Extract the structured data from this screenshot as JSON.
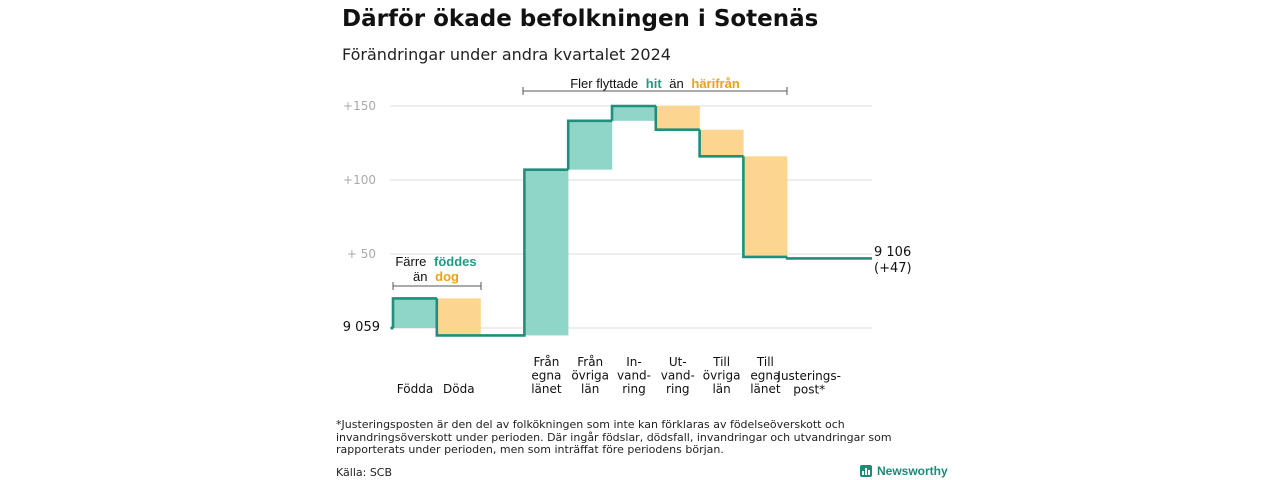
{
  "title": "Därför ökade befolkningen i Sotenäs",
  "subtitle": "Förändringar under andra kvartalet 2024",
  "annotation_top": {
    "prefix": "Fler flyttade",
    "hit": "hit",
    "middle": "än",
    "harifran": "härifrån"
  },
  "annotation_left": {
    "line1_prefix": "Färre",
    "line1_highlight": "föddes",
    "line2_prefix": "än",
    "line2_highlight": "dog"
  },
  "colors": {
    "inflow": "#8fd6c9",
    "outflow": "#fcd691",
    "line": "#1f8f7b",
    "grid": "#dddddd",
    "axis_text": "#aaaaaa",
    "inflow_text": "#1f9a85",
    "outflow_text": "#e9a21a"
  },
  "footnote": "*Justeringsposten är den del av folkökningen som inte kan förklaras av födelseöverskott och invandringsöverskott under perioden. Där ingår födslar, dödsfall, invandringar och utvandringar som rapporterats under perioden, men som inträffat före periodens början.",
  "source": "Källa: SCB",
  "brand": "Newsworthy",
  "chart_data": {
    "type": "waterfall",
    "start_label": "9 059",
    "end_label_line1": "9 106",
    "end_label_line2": "(+47)",
    "y_ticks": [
      {
        "value": 150,
        "label": "+150"
      },
      {
        "value": 100,
        "label": "+100"
      },
      {
        "value": 50,
        "label": "+  50"
      }
    ],
    "ylim": [
      0,
      150
    ],
    "grid": true,
    "steps": [
      {
        "label_lines": [
          "Födda"
        ],
        "from": 0,
        "to": 20,
        "kind": "in"
      },
      {
        "label_lines": [
          "Döda"
        ],
        "from": 20,
        "to": -5,
        "kind": "out"
      },
      {
        "label_lines": [
          "Från",
          "egna",
          "länet"
        ],
        "from": -5,
        "to": 107,
        "kind": "in"
      },
      {
        "label_lines": [
          "Från",
          "övriga",
          "län"
        ],
        "from": 107,
        "to": 140,
        "kind": "in"
      },
      {
        "label_lines": [
          "In-",
          "vand-",
          "ring"
        ],
        "from": 140,
        "to": 150,
        "kind": "in"
      },
      {
        "label_lines": [
          "Ut-",
          "vand-",
          "ring"
        ],
        "from": 150,
        "to": 134,
        "kind": "out"
      },
      {
        "label_lines": [
          "Till",
          "övriga",
          "län"
        ],
        "from": 134,
        "to": 116,
        "kind": "out"
      },
      {
        "label_lines": [
          "Till",
          "egna",
          "länet"
        ],
        "from": 116,
        "to": 48,
        "kind": "out"
      },
      {
        "label_lines": [
          "Justerings-",
          "post*"
        ],
        "from": 48,
        "to": 47,
        "kind": "adj"
      }
    ],
    "final_value": 47
  }
}
